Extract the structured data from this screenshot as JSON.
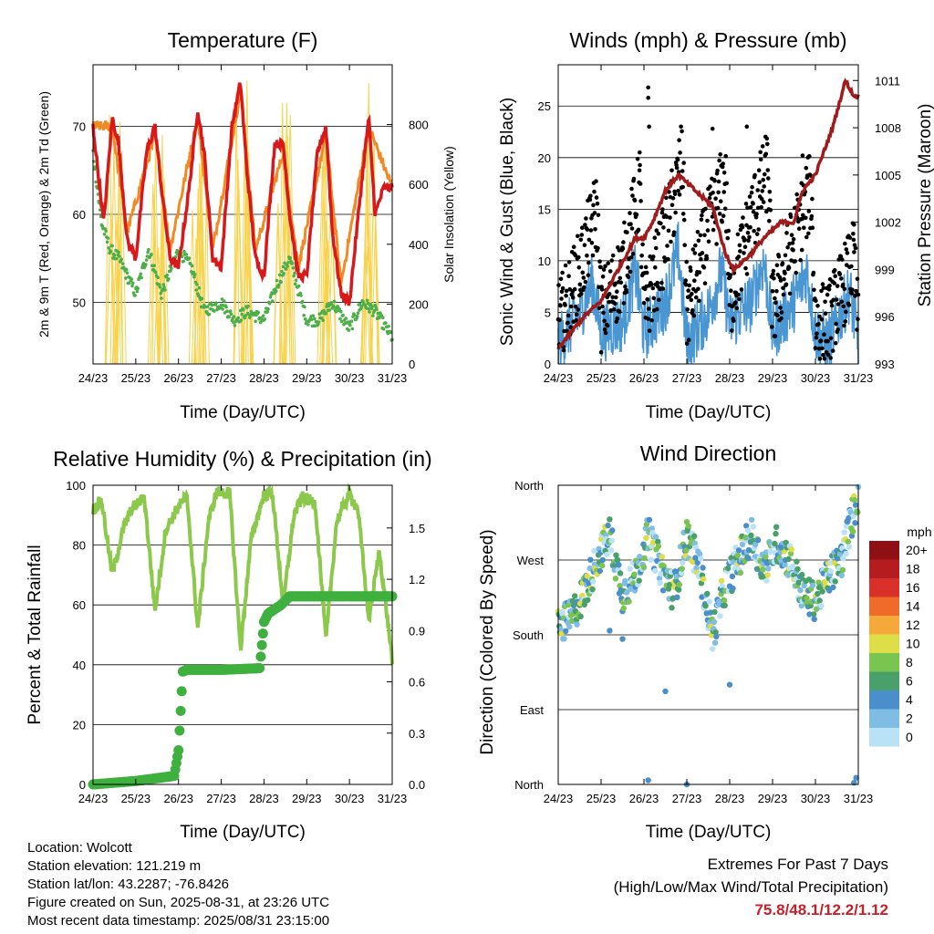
{
  "panels": {
    "temperature": {
      "title": "Temperature (F)",
      "ylabel_left": "2m & 9m T (Red, Orange) & 2m Td (Green)",
      "ylabel_right": "Solar Insolation (Yellow)",
      "xlabel": "Time (Day/UTC)"
    },
    "wind": {
      "title": "Winds (mph) & Pressure (mb)",
      "ylabel_left": "Sonic Wind & Gust (Blue, Black)",
      "ylabel_right": "Station Pressure (Maroon)",
      "xlabel": "Time (Day/UTC)"
    },
    "humidity": {
      "title": "Relative Humidity (%) & Precipitation (in)",
      "ylabel_left": "Percent & Total Rainfall",
      "xlabel": "Time (Day/UTC)"
    },
    "direction": {
      "title": "Wind Direction",
      "ylabel_left": "Direction (Colored By Speed)",
      "xlabel": "Time (Day/UTC)"
    }
  },
  "info": {
    "location": "Location: Wolcott",
    "elevation": "Station elevation: 121.219 m",
    "latlon": "Station lat/lon: 43.2287; -76.8426",
    "created": "Figure created on Sun, 2025-08-31, at 23:26 UTC",
    "recent": "Most recent data timestamp: 2025/08/31 23:15:00"
  },
  "extremes": {
    "title": "Extremes For Past 7 Days",
    "subtitle": "(High/Low/Max Wind/Total Precipitation)",
    "values": "75.8/48.1/12.2/1.12"
  },
  "colors": {
    "temp2m": "#d7191c",
    "temp9m": "#f08a24",
    "dewpoint": "#4daf4a",
    "solar": "#f7d24a",
    "wind": "#4a96d2",
    "gust": "#000000",
    "pressure": "#a01c1c",
    "rh": "#8cc84b",
    "precip": "#3fb03f"
  },
  "chart_data": [
    {
      "type": "line",
      "title": "Temperature (F)",
      "xlabel": "Time (Day/UTC)",
      "ylabel": "2m & 9m T (Red, Orange) & 2m Td (Green)",
      "y2label": "Solar Insolation (Yellow)",
      "x_ticks": [
        "24/23",
        "25/23",
        "26/23",
        "27/23",
        "28/23",
        "29/23",
        "30/23",
        "31/23"
      ],
      "ylim": [
        43,
        77
      ],
      "y_ticks": [
        50,
        60,
        70
      ],
      "y2lim": [
        0,
        1000
      ],
      "y2_ticks": [
        0,
        200,
        400,
        600,
        800
      ],
      "series": [
        {
          "name": "2m T",
          "x": [
            0,
            0.25,
            0.45,
            0.6,
            0.8,
            1.0,
            1.25,
            1.45,
            1.6,
            1.8,
            2.0,
            2.25,
            2.45,
            2.6,
            2.8,
            3.0,
            3.25,
            3.45,
            3.6,
            3.8,
            4.0,
            4.25,
            4.45,
            4.6,
            4.8,
            5.0,
            5.25,
            5.45,
            5.6,
            5.8,
            6.0,
            6.25,
            6.45,
            6.6,
            6.8,
            7.0
          ],
          "values": [
            70,
            59,
            71,
            68,
            57,
            55,
            67,
            70,
            63,
            55,
            54,
            63,
            72,
            67,
            55,
            54,
            70,
            75,
            65,
            55,
            53,
            68,
            68,
            60,
            53,
            53,
            67,
            70,
            58,
            51,
            50,
            62,
            71,
            60,
            63,
            63
          ]
        },
        {
          "name": "9m T",
          "x": [
            0,
            0.45,
            0.8,
            1.45,
            1.8,
            2.45,
            2.8,
            3.45,
            3.8,
            4.45,
            4.8,
            5.45,
            5.8,
            6.45,
            7.0
          ],
          "values": [
            70,
            70,
            58,
            69,
            56,
            71,
            56,
            74,
            56,
            67,
            54,
            69,
            52,
            70,
            63
          ]
        },
        {
          "name": "2m Td",
          "x": [
            0,
            0.2,
            0.4,
            0.6,
            0.8,
            1.0,
            1.3,
            1.6,
            2.0,
            2.3,
            2.6,
            3.0,
            3.3,
            3.6,
            4.0,
            4.3,
            4.6,
            5.0,
            5.3,
            5.6,
            6.0,
            6.3,
            6.6,
            7.0
          ],
          "values": [
            67,
            59,
            56,
            55,
            53,
            51,
            56,
            51,
            56,
            54,
            49,
            50,
            48,
            49,
            48,
            52,
            55,
            48,
            48,
            50,
            47,
            50,
            49,
            46
          ]
        },
        {
          "name": "Solar Insolation",
          "axis": "y2",
          "peaks_x": [
            0.5,
            1.5,
            2.5,
            3.5,
            4.5,
            5.5,
            6.5
          ],
          "peaks": [
            900,
            950,
            960,
            950,
            960,
            940,
            950
          ]
        }
      ]
    },
    {
      "type": "scatter",
      "title": "Winds (mph) & Pressure (mb)",
      "xlabel": "Time (Day/UTC)",
      "ylabel": "Sonic Wind & Gust (Blue, Black)",
      "y2label": "Station Pressure (Maroon)",
      "x_ticks": [
        "24/23",
        "25/23",
        "26/23",
        "27/23",
        "28/23",
        "29/23",
        "30/23",
        "31/23"
      ],
      "ylim": [
        0,
        29
      ],
      "y_ticks": [
        0,
        5,
        10,
        15,
        20,
        25
      ],
      "y2lim": [
        993,
        1012
      ],
      "y2_ticks": [
        993,
        996,
        999,
        1002,
        1005,
        1008,
        1011
      ],
      "series": [
        {
          "name": "Sonic Wind",
          "x": [
            0,
            0.5,
            0.8,
            1.0,
            1.5,
            1.8,
            2.0,
            2.5,
            2.8,
            3.0,
            3.5,
            3.8,
            4.0,
            4.5,
            4.8,
            5.0,
            5.5,
            5.8,
            6.0,
            6.3,
            6.6,
            6.8,
            7.0
          ],
          "values": [
            2,
            5,
            8,
            3,
            4,
            9,
            3,
            6,
            11,
            2,
            5,
            9,
            4,
            6,
            10,
            3,
            6,
            9,
            3,
            2,
            5,
            7,
            2
          ]
        },
        {
          "name": "Gust",
          "x": [
            0,
            0.5,
            0.9,
            1.0,
            1.5,
            1.9,
            2.0,
            2.5,
            2.9,
            3.0,
            3.5,
            3.9,
            4.0,
            4.5,
            4.9,
            5.0,
            5.5,
            5.9,
            6.0,
            6.3,
            6.7,
            6.9,
            7.0
          ],
          "values": [
            4,
            9,
            15,
            5,
            9,
            17,
            5,
            12,
            20,
            5,
            13,
            18,
            6,
            14,
            19,
            5,
            12,
            17,
            4,
            4,
            8,
            10,
            3
          ]
        },
        {
          "name": "Station Pressure",
          "x": [
            0,
            0.3,
            0.6,
            1.0,
            1.4,
            1.8,
            2.0,
            2.2,
            2.5,
            2.8,
            3.2,
            3.6,
            3.9,
            4.1,
            4.5,
            4.8,
            5.2,
            5.5,
            5.7,
            6.0,
            6.4,
            6.7,
            6.9,
            7.0
          ],
          "values": [
            994,
            995,
            996,
            997,
            999,
            1001,
            1001,
            1002,
            1004,
            1005,
            1004,
            1003,
            1000,
            999,
            1000,
            1001,
            1002,
            1002,
            1004,
            1005,
            1008,
            1011,
            1010,
            1010
          ]
        }
      ]
    },
    {
      "type": "line",
      "title": "Relative Humidity (%) & Precipitation (in)",
      "xlabel": "Time (Day/UTC)",
      "ylabel": "Percent & Total Rainfall",
      "x_ticks": [
        "24/23",
        "25/23",
        "26/23",
        "27/23",
        "28/23",
        "29/23",
        "30/23",
        "31/23"
      ],
      "ylim": [
        0,
        100
      ],
      "y_ticks": [
        0,
        20,
        40,
        60,
        80,
        100
      ],
      "y2lim": [
        0,
        1.75
      ],
      "y2_ticks": [
        0.0,
        0.3,
        0.6,
        0.9,
        1.2,
        1.5
      ],
      "series": [
        {
          "name": "Relative Humidity",
          "x": [
            0,
            0.2,
            0.45,
            0.7,
            0.9,
            1.2,
            1.45,
            1.7,
            2.0,
            2.2,
            2.45,
            2.7,
            2.9,
            3.2,
            3.45,
            3.7,
            4.0,
            4.2,
            4.45,
            4.7,
            4.9,
            5.2,
            5.45,
            5.7,
            6.0,
            6.2,
            6.45,
            6.7,
            7.0
          ],
          "values": [
            92,
            95,
            70,
            85,
            92,
            96,
            58,
            85,
            93,
            96,
            52,
            88,
            98,
            97,
            45,
            82,
            97,
            97,
            60,
            90,
            96,
            94,
            48,
            88,
            97,
            92,
            55,
            78,
            42
          ]
        },
        {
          "name": "Total Precipitation",
          "axis": "y2",
          "x": [
            0,
            1,
            1.9,
            2.0,
            2.1,
            2.2,
            2.5,
            3.0,
            3.9,
            4.0,
            4.1,
            4.4,
            4.6,
            5.0,
            6.0,
            7.0
          ],
          "values": [
            0.0,
            0.02,
            0.05,
            0.2,
            0.66,
            0.67,
            0.67,
            0.67,
            0.68,
            0.95,
            1.0,
            1.05,
            1.1,
            1.1,
            1.1,
            1.1
          ]
        }
      ]
    },
    {
      "type": "scatter",
      "title": "Wind Direction",
      "xlabel": "Time (Day/UTC)",
      "ylabel": "Direction (Colored By Speed)",
      "x_ticks": [
        "24/23",
        "25/23",
        "26/23",
        "27/23",
        "28/23",
        "29/23",
        "30/23",
        "31/23"
      ],
      "y_ticks": [
        "North",
        "East",
        "South",
        "West",
        "North"
      ],
      "ylim": [
        0,
        360
      ],
      "colorbar": {
        "title": "mph",
        "labels": [
          "20+",
          "18",
          "16",
          "14",
          "12",
          "10",
          "8",
          "6",
          "4",
          "2",
          "0"
        ]
      },
      "series": [
        {
          "name": "Direction",
          "x": [
            0,
            0.3,
            0.6,
            0.9,
            1.2,
            1.5,
            1.8,
            2.1,
            2.4,
            2.7,
            3.0,
            3.3,
            3.6,
            3.9,
            4.2,
            4.5,
            4.8,
            5.1,
            5.4,
            5.7,
            6.0,
            6.3,
            6.6,
            6.9,
            7.0
          ],
          "values": [
            190,
            200,
            230,
            270,
            300,
            230,
            250,
            300,
            260,
            230,
            300,
            260,
            180,
            240,
            270,
            300,
            260,
            290,
            270,
            230,
            220,
            250,
            270,
            330,
            350
          ]
        }
      ]
    }
  ]
}
